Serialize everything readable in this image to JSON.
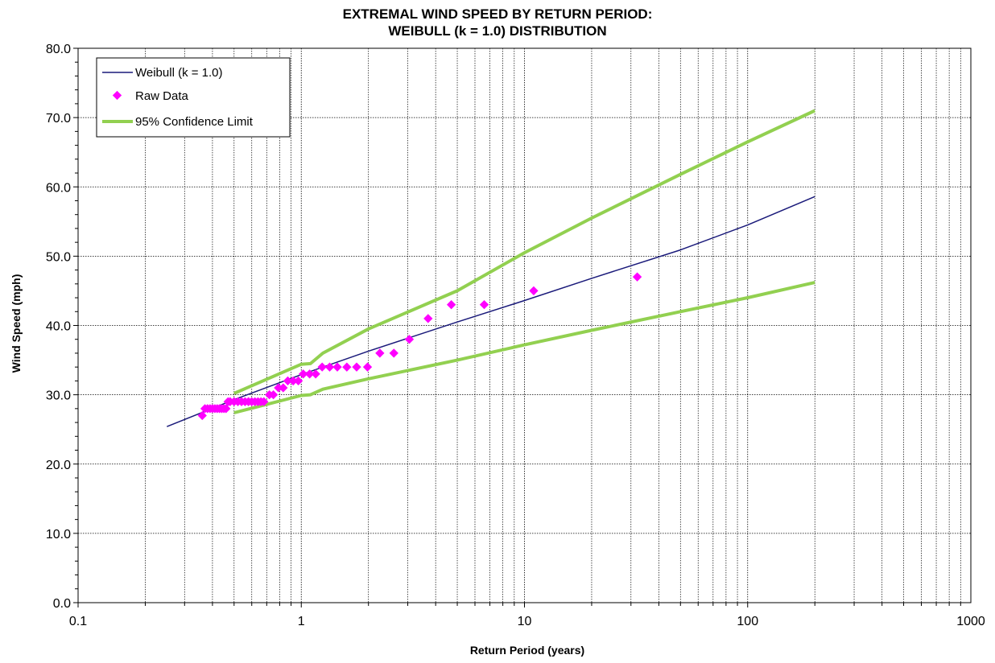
{
  "chart_data": {
    "type": "scatter",
    "title_line1": "EXTREMAL WIND SPEED BY RETURN PERIOD:",
    "title_line2": "WEIBULL (k = 1.0) DISTRIBUTION",
    "xlabel": "Return Period (years)",
    "ylabel": "Wind Speed (mph)",
    "x_scale": "log",
    "xlim": [
      0.1,
      1000
    ],
    "ylim": [
      0,
      80
    ],
    "x_ticks": [
      "0.1",
      "1",
      "10",
      "100",
      "1000"
    ],
    "y_ticks": [
      "0.0",
      "10.0",
      "20.0",
      "30.0",
      "40.0",
      "50.0",
      "60.0",
      "70.0",
      "80.0"
    ],
    "grid": true,
    "legend_position": "top-left",
    "legend": [
      "Weibull (k = 1.0)",
      "Raw Data",
      "95% Confidence Limit"
    ],
    "colors": {
      "weibull": "#1a1a7a",
      "raw": "#ff00ff",
      "confidence": "#92d050"
    },
    "series": [
      {
        "name": "Weibull (k = 1.0)",
        "kind": "line",
        "x": [
          0.25,
          0.5,
          1,
          2,
          5,
          10,
          20,
          50,
          100,
          200
        ],
        "y": [
          25.4,
          29.3,
          32.9,
          36.3,
          40.5,
          43.6,
          46.8,
          50.9,
          54.5,
          58.6
        ]
      },
      {
        "name": "Raw Data",
        "kind": "scatter",
        "x": [
          0.36,
          0.37,
          0.38,
          0.39,
          0.4,
          0.41,
          0.42,
          0.43,
          0.44,
          0.45,
          0.46,
          0.47,
          0.48,
          0.5,
          0.52,
          0.54,
          0.56,
          0.58,
          0.6,
          0.62,
          0.64,
          0.66,
          0.68,
          0.72,
          0.75,
          0.79,
          0.83,
          0.87,
          0.92,
          0.97,
          1.02,
          1.09,
          1.16,
          1.24,
          1.34,
          1.45,
          1.6,
          1.77,
          1.98,
          2.25,
          2.6,
          3.05,
          3.7,
          4.7,
          6.6,
          11.0,
          32.0
        ],
        "y": [
          27,
          28,
          28,
          28,
          28,
          28,
          28,
          28,
          28,
          28,
          28,
          29,
          29,
          29,
          29,
          29,
          29,
          29,
          29,
          29,
          29,
          29,
          29,
          30,
          30,
          31,
          31,
          32,
          32,
          32,
          33,
          33,
          33,
          34,
          34,
          34,
          34,
          34,
          34,
          36,
          36,
          38,
          41,
          43,
          43,
          45,
          47
        ]
      },
      {
        "name": "95% Confidence Limit",
        "kind": "line",
        "x": [
          0.5,
          1,
          1.1,
          1.25,
          2,
          5,
          10,
          20,
          50,
          100,
          200
        ],
        "y": [
          30.2,
          34.4,
          34.5,
          36.0,
          39.5,
          45.0,
          50.5,
          55.5,
          61.8,
          66.5,
          71.0
        ]
      },
      {
        "name": "",
        "kind": "line",
        "x": [
          0.5,
          1,
          1.1,
          1.25,
          2,
          5,
          10,
          20,
          50,
          100,
          200
        ],
        "y": [
          27.4,
          29.9,
          30.0,
          30.8,
          32.3,
          35.0,
          37.2,
          39.3,
          42.0,
          44.0,
          46.2
        ]
      }
    ]
  }
}
